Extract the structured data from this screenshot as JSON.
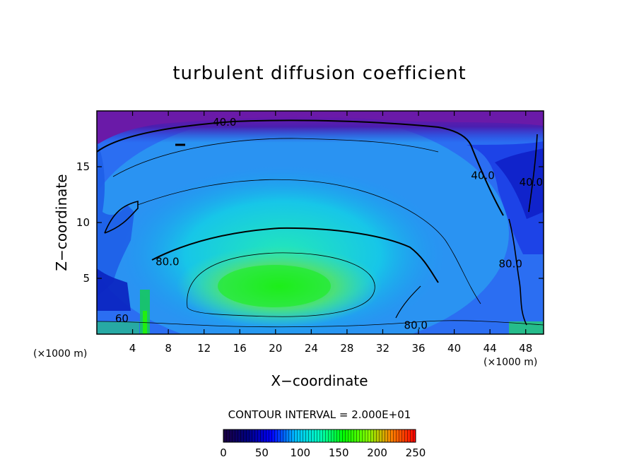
{
  "chart_data": {
    "type": "heatmap",
    "title": "turbulent diffusion coefficient",
    "xlabel": "X−coordinate",
    "ylabel": "Z−coordinate",
    "x_unit_left": "(×1000 m)",
    "x_unit_right": "(×1000 m)",
    "xlim": [
      0,
      50
    ],
    "ylim": [
      0,
      20
    ],
    "x_ticks": [
      4,
      8,
      12,
      16,
      20,
      24,
      28,
      32,
      36,
      40,
      44,
      48
    ],
    "y_ticks": [
      5,
      10,
      15
    ],
    "contour_interval_text": "CONTOUR INTERVAL =  2.000E+01",
    "contour_interval": 20,
    "contour_labels": [
      {
        "text": "40.0",
        "x": 14.3,
        "y": 19.0
      },
      {
        "text": "40.0",
        "x": 43.2,
        "y": 14.2
      },
      {
        "text": "40.0",
        "x": 48.6,
        "y": 13.6
      },
      {
        "text": "80.0",
        "x": 7.9,
        "y": 6.5
      },
      {
        "text": "80.0",
        "x": 46.3,
        "y": 6.3
      },
      {
        "text": "80.0",
        "x": 35.7,
        "y": 0.8
      },
      {
        "text": "60",
        "x": 2.8,
        "y": 1.4
      }
    ],
    "colorbar": {
      "min": 0,
      "max": 250,
      "ticks": [
        0,
        50,
        100,
        150,
        200,
        250
      ],
      "colors": [
        "#1a0040",
        "#000080",
        "#0000ff",
        "#00bfff",
        "#00ffbf",
        "#00ff00",
        "#80ff00",
        "#ff8000",
        "#ff0000"
      ]
    },
    "grid": false,
    "legend": "colorbar-bottom"
  }
}
